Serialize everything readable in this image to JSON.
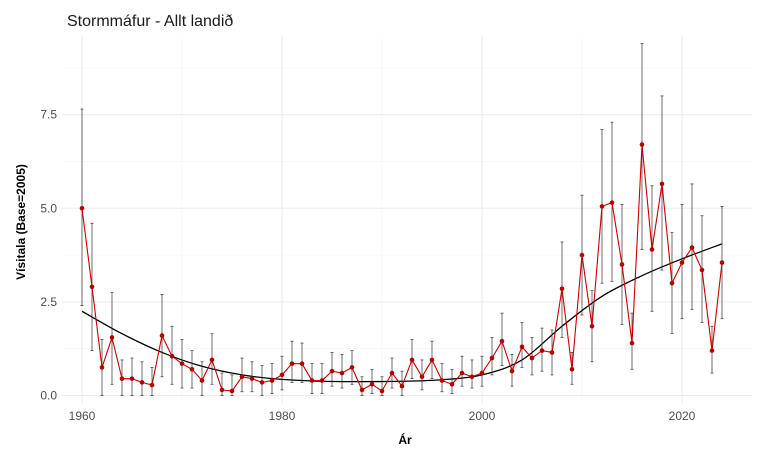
{
  "chart_data": {
    "type": "line",
    "title": "Stormmáfur - Allt landið",
    "xlabel": "Ár",
    "ylabel": "Vísitala (Base=2005)",
    "xlim": [
      1958,
      2027
    ],
    "ylim": [
      -0.2,
      9.6
    ],
    "x_ticks": [
      1960,
      1980,
      2000,
      2020
    ],
    "y_ticks": [
      0,
      2.5,
      5,
      7.5
    ],
    "y_tick_labels": [
      "0.0",
      "2.5",
      "5.0",
      "7.5"
    ],
    "grid": true,
    "colors": {
      "series": "#cc0000",
      "points": "#b30000",
      "trend": "#000000",
      "errorbars": "#333333"
    },
    "series": [
      {
        "x": [
          1960,
          1961,
          1962,
          1963,
          1964,
          1965,
          1966,
          1967,
          1968,
          1969,
          1970,
          1971,
          1972,
          1973,
          1974,
          1975,
          1976,
          1977,
          1978,
          1979,
          1980,
          1981,
          1982,
          1983,
          1984,
          1985,
          1986,
          1987,
          1988,
          1989,
          1990,
          1991,
          1992,
          1993,
          1994,
          1995,
          1996,
          1997,
          1998,
          1999,
          2000,
          2001,
          2002,
          2003,
          2004,
          2005,
          2006,
          2007,
          2008,
          2009,
          2010,
          2011,
          2012,
          2013,
          2014,
          2015,
          2016,
          2017,
          2018,
          2019,
          2020,
          2021,
          2022,
          2023,
          2024
        ],
        "y": [
          5.0,
          2.9,
          0.75,
          1.55,
          0.45,
          0.45,
          0.35,
          0.28,
          1.6,
          1.05,
          0.85,
          0.7,
          0.4,
          0.95,
          0.15,
          0.12,
          0.5,
          0.45,
          0.35,
          0.4,
          0.55,
          0.85,
          0.85,
          0.4,
          0.4,
          0.65,
          0.6,
          0.75,
          0.15,
          0.3,
          0.12,
          0.6,
          0.25,
          0.95,
          0.5,
          0.95,
          0.4,
          0.3,
          0.6,
          0.5,
          0.6,
          1.0,
          1.45,
          0.65,
          1.3,
          1.0,
          1.2,
          1.15,
          2.85,
          0.7,
          3.75,
          1.85,
          5.05,
          5.15,
          3.5,
          1.4,
          6.7,
          3.9,
          5.65,
          3.0,
          3.55,
          3.95,
          3.35,
          1.2,
          3.55
        ],
        "lower": [
          2.4,
          1.2,
          0.0,
          0.3,
          0.0,
          0.0,
          0.0,
          0.0,
          0.5,
          0.3,
          0.2,
          0.2,
          0.0,
          0.3,
          0.0,
          0.0,
          0.1,
          0.1,
          0.0,
          0.05,
          0.15,
          0.35,
          0.35,
          0.05,
          0.05,
          0.25,
          0.2,
          0.3,
          0.0,
          0.05,
          0.0,
          0.2,
          0.0,
          0.45,
          0.15,
          0.45,
          0.1,
          0.05,
          0.25,
          0.2,
          0.25,
          0.55,
          0.8,
          0.25,
          0.75,
          0.55,
          0.65,
          0.55,
          1.55,
          0.3,
          2.15,
          0.9,
          3.0,
          3.05,
          1.9,
          0.7,
          3.9,
          2.25,
          3.35,
          1.65,
          2.05,
          2.3,
          1.95,
          0.6,
          2.05
        ],
        "upper": [
          7.65,
          4.6,
          1.5,
          2.75,
          0.95,
          1.0,
          0.9,
          0.75,
          2.7,
          1.85,
          1.5,
          1.2,
          0.9,
          1.65,
          0.6,
          0.55,
          1.0,
          0.9,
          0.8,
          0.85,
          1.05,
          1.45,
          1.4,
          0.85,
          0.85,
          1.15,
          1.1,
          1.2,
          0.5,
          0.7,
          0.5,
          1.0,
          0.65,
          1.5,
          0.95,
          1.45,
          0.85,
          0.7,
          1.05,
          0.95,
          1.05,
          1.55,
          2.2,
          1.1,
          1.95,
          1.55,
          1.8,
          1.75,
          4.1,
          1.15,
          5.35,
          2.8,
          7.1,
          7.3,
          5.1,
          2.2,
          9.4,
          5.6,
          8.0,
          4.35,
          5.1,
          5.65,
          4.8,
          1.85,
          5.05
        ]
      },
      {
        "x": [
          1960,
          1964,
          1968,
          1972,
          1976,
          1980,
          1984,
          1988,
          1992,
          1996,
          2000,
          2004,
          2008,
          2012,
          2016,
          2020,
          2024
        ],
        "y": [
          2.25,
          1.65,
          1.15,
          0.78,
          0.55,
          0.43,
          0.38,
          0.37,
          0.38,
          0.42,
          0.55,
          0.95,
          1.85,
          2.65,
          3.2,
          3.65,
          4.05
        ]
      }
    ]
  }
}
